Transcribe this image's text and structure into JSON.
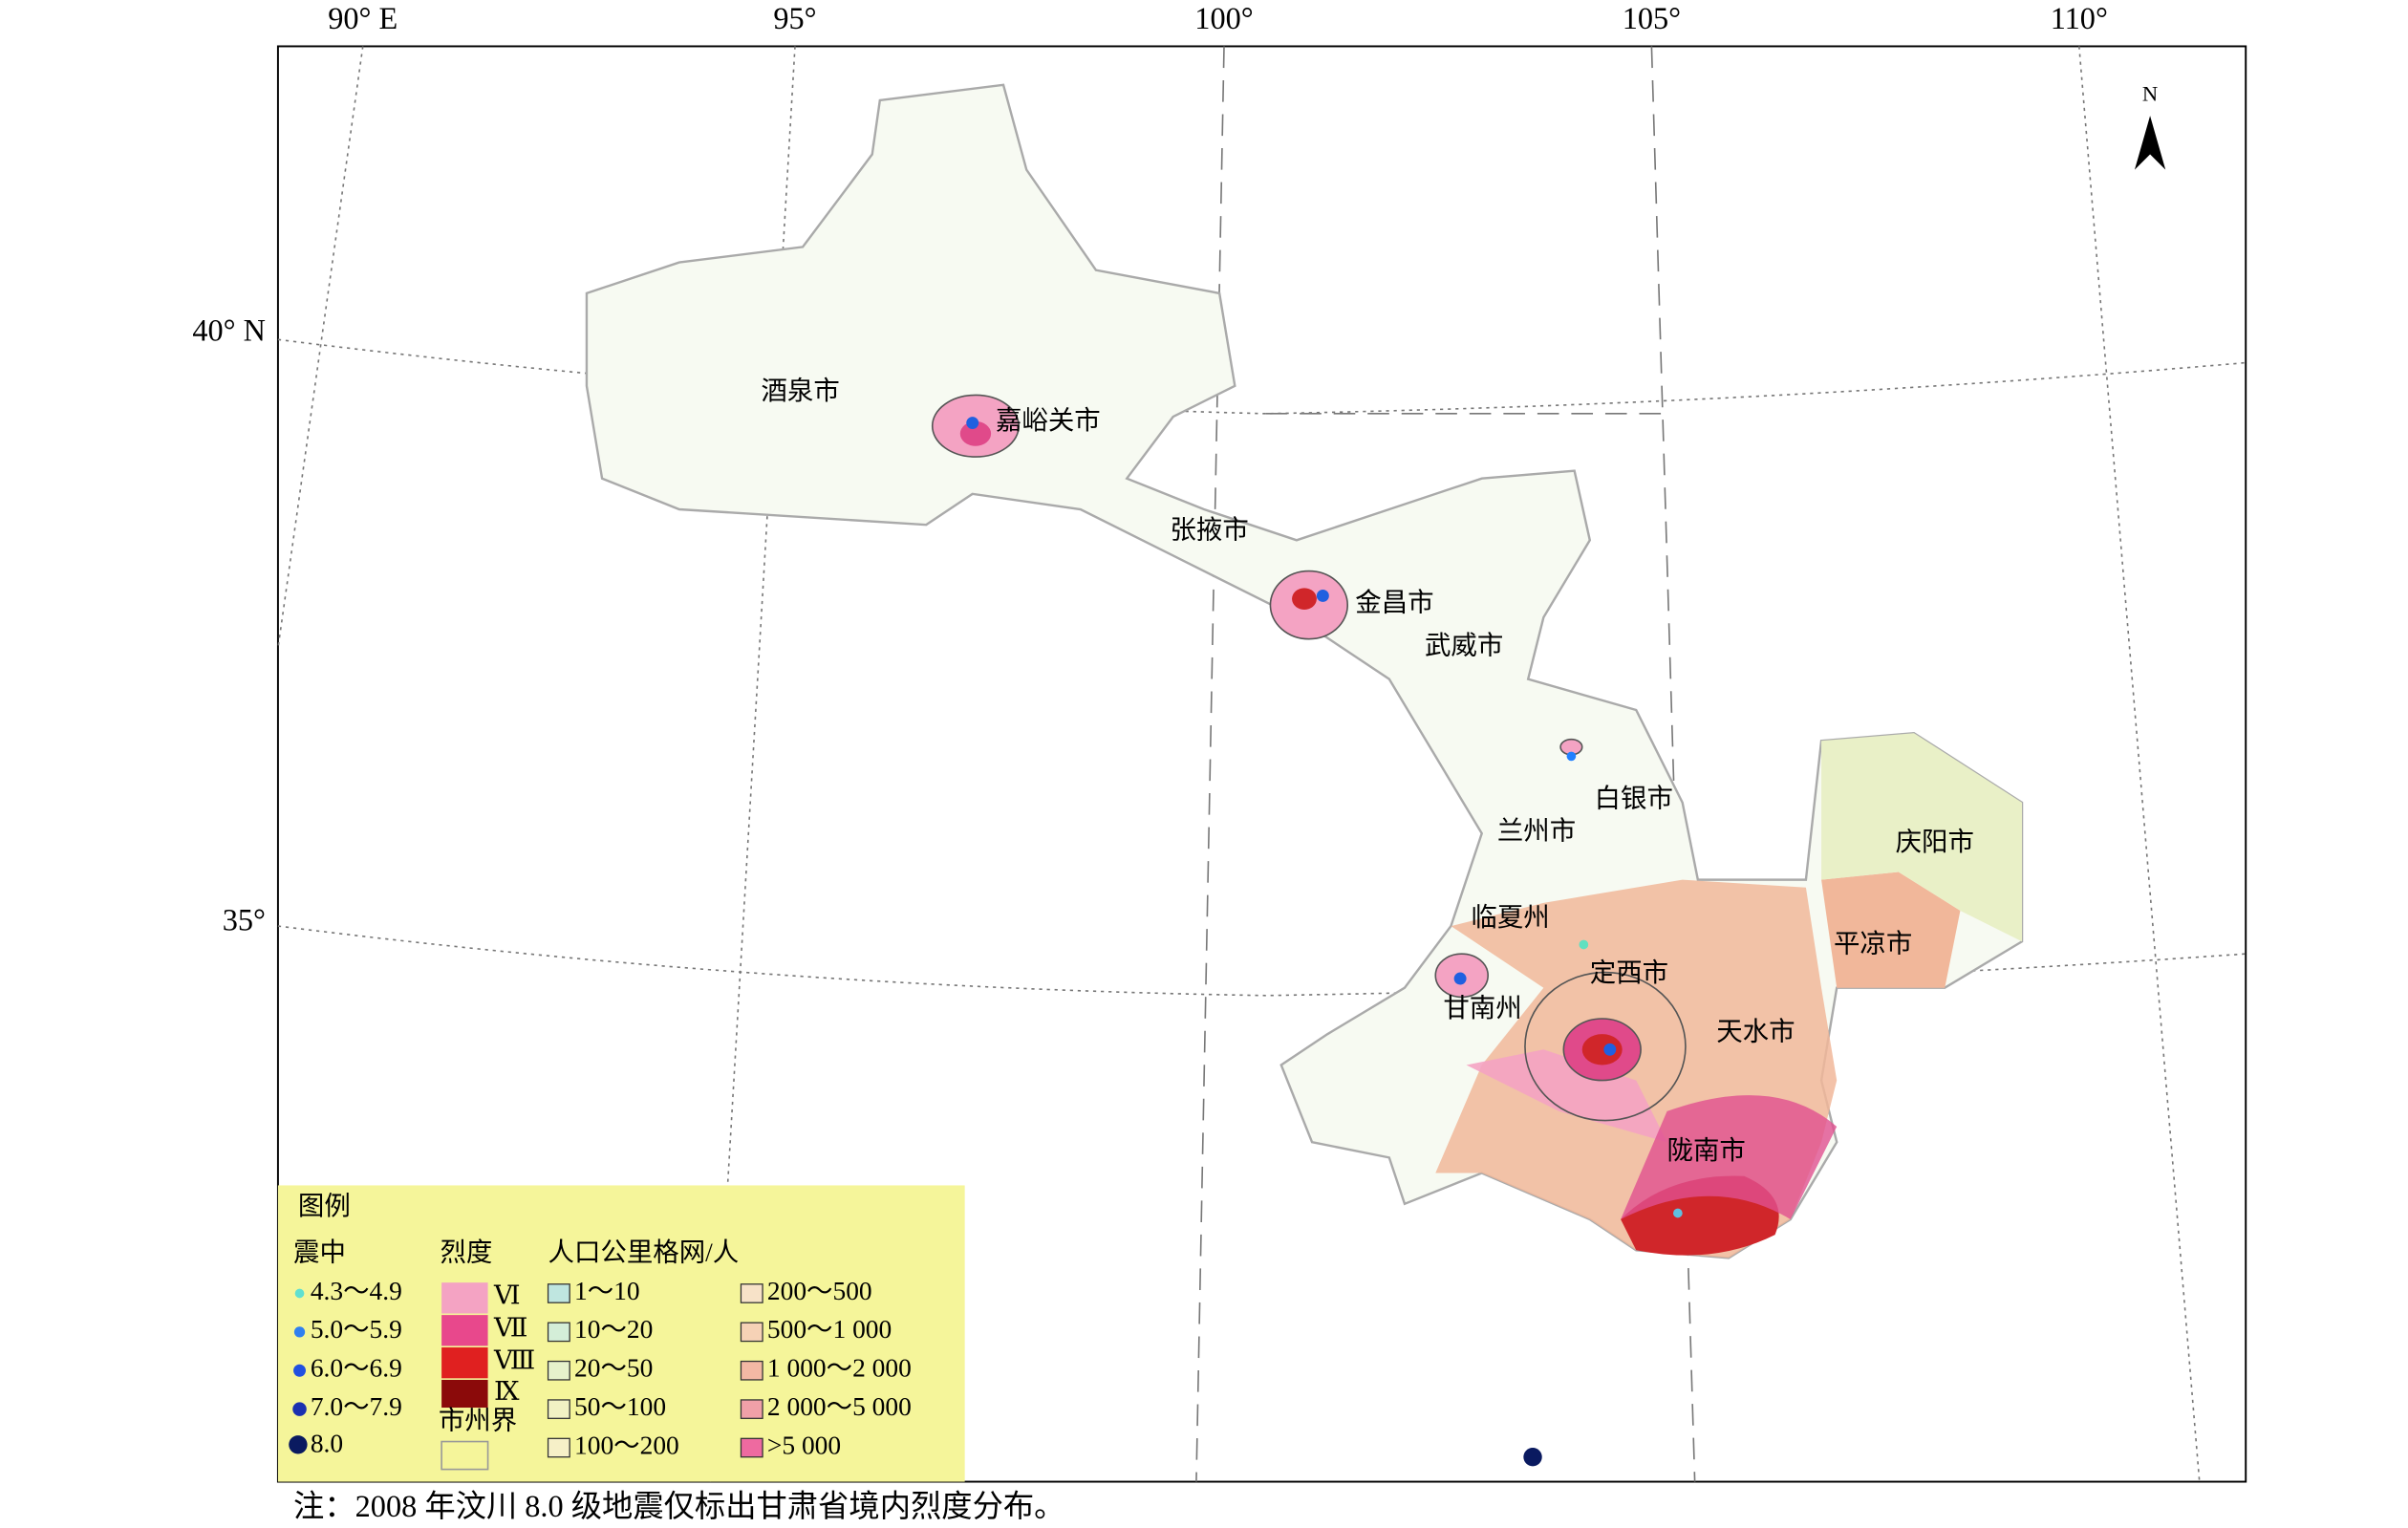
{
  "map": {
    "lon_labels": [
      "90° E",
      "95°",
      "100°",
      "105°",
      "110°"
    ],
    "lat_labels": [
      "40° N",
      "35°"
    ],
    "north": "N",
    "cities": [
      "酒泉市",
      "嘉峪关市",
      "张掖市",
      "金昌市",
      "武威市",
      "白银市",
      "兰州市",
      "临夏州",
      "甘南州",
      "定西市",
      "天水市",
      "平凉市",
      "庆阳市",
      "陇南市"
    ]
  },
  "legend": {
    "title": "图例",
    "epicenter_title": "震中",
    "epicenter": [
      "4.3～4.9",
      "5.0～5.9",
      "6.0～6.9",
      "7.0～7.9",
      "8.0"
    ],
    "intensity_title": "烈度",
    "intensity": [
      "Ⅵ",
      "Ⅶ",
      "Ⅷ",
      "Ⅸ"
    ],
    "boundary": "市州界",
    "population_title": "人口公里格网/人",
    "population": [
      "1～10",
      "10～20",
      "20～50",
      "50～100",
      "100～200",
      "200～500",
      "500～1 000",
      "1 000～2 000",
      "2 000～5 000",
      ">5 000"
    ]
  },
  "note": "注：2008 年汶川 8.0 级地震仅标出甘肃省境内烈度分布。"
}
